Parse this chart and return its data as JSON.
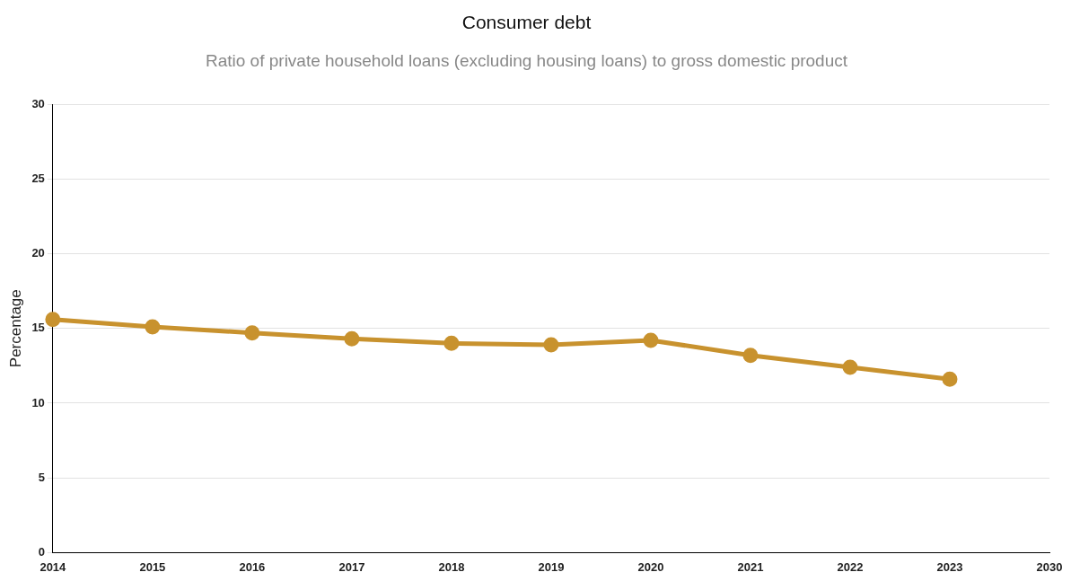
{
  "chart_data": {
    "type": "line",
    "title": "Consumer debt",
    "subtitle": "Ratio of private household loans (excluding housing loans) to gross domestic product",
    "ylabel": "Percentage",
    "categories": [
      "2014",
      "2015",
      "2016",
      "2017",
      "2018",
      "2019",
      "2020",
      "2021",
      "2022",
      "2023",
      "2030"
    ],
    "series": [
      {
        "color": "#c8922e",
        "values": [
          15.6,
          15.1,
          14.7,
          14.3,
          14.0,
          13.9,
          14.2,
          13.2,
          12.4,
          11.6,
          null
        ]
      }
    ],
    "ylim": [
      0,
      30
    ],
    "yticks": [
      0,
      5,
      10,
      15,
      20,
      25,
      30
    ],
    "grid": "y",
    "legend": false,
    "marker": "circle",
    "line_style": "solid"
  }
}
